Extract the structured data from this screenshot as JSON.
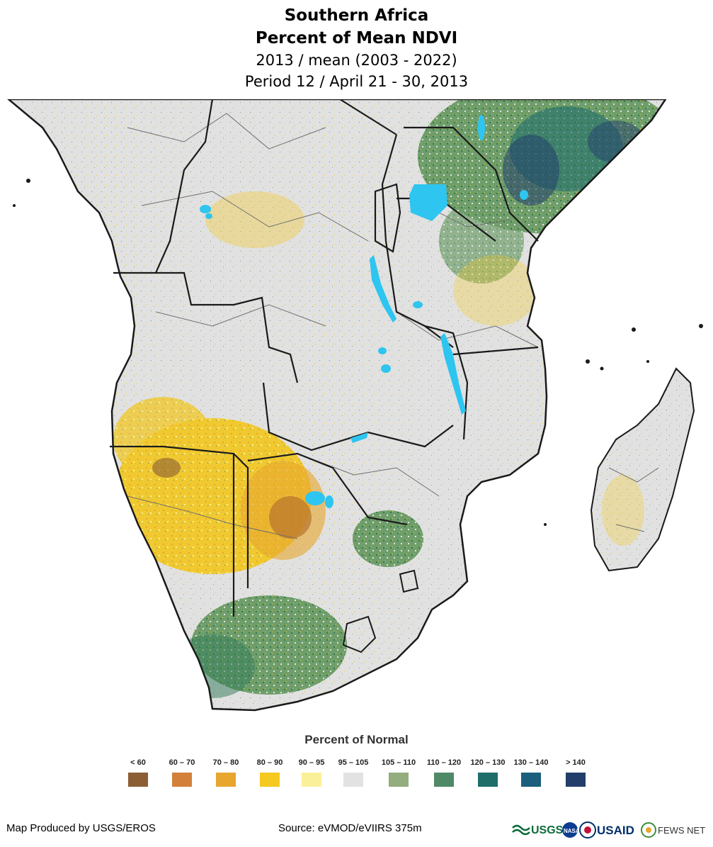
{
  "header": {
    "title_line1": "Southern Africa",
    "title_line2": "Percent of Mean NDVI",
    "subtitle_line1": "2013 / mean (2003 - 2022)",
    "subtitle_line2": "Period 12 / April 21 - 30, 2013"
  },
  "map": {
    "colors": {
      "ocean": "#ffffff",
      "land_normal": "#e1e1e1",
      "water": "#2ec5f0",
      "border": "#1a1a1a",
      "admin_border": "#6e6e6e"
    }
  },
  "legend": {
    "title": "Percent of Normal",
    "items": [
      {
        "label": "< 60",
        "color": "#8b5e34"
      },
      {
        "label": "60 – 70",
        "color": "#d3803a"
      },
      {
        "label": "70 – 80",
        "color": "#e8a62e"
      },
      {
        "label": "80 – 90",
        "color": "#f5c91f"
      },
      {
        "label": "90 – 95",
        "color": "#fbf09a"
      },
      {
        "label": "95 – 105",
        "color": "#e2e2e2"
      },
      {
        "label": "105 – 110",
        "color": "#93ad7e"
      },
      {
        "label": "110 – 120",
        "color": "#4e8a66"
      },
      {
        "label": "120 – 130",
        "color": "#1f6e6a"
      },
      {
        "label": "130 – 140",
        "color": "#1b5f7d"
      },
      {
        "label": "> 140",
        "color": "#233e6b"
      }
    ]
  },
  "footer": {
    "left": "Map Produced by USGS/EROS",
    "center": "Source: eVMOD/eVIIRS 375m",
    "logos": [
      "USGS",
      "NASA",
      "USAID",
      "FEWS NET"
    ]
  }
}
